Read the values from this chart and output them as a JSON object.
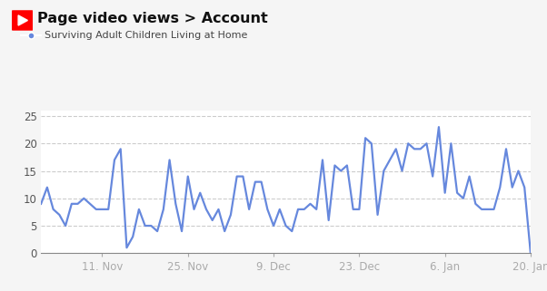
{
  "title": "Page video views > Account",
  "legend_label": "Surviving Adult Children Living at Home",
  "background_color": "#f5f5f5",
  "plot_bg_color": "#ffffff",
  "line_color": "#6688dd",
  "line_width": 1.6,
  "yticks": [
    0,
    5,
    10,
    15,
    20,
    25
  ],
  "ylim": [
    0,
    26
  ],
  "xtick_labels": [
    "11. Nov",
    "25. Nov",
    "9. Dec",
    "23. Dec",
    "6. Jan",
    "20. Jan"
  ],
  "grid_color": "#cccccc",
  "grid_style": "--",
  "title_color": "#111111",
  "title_fontsize": 11.5,
  "legend_color": "#444444",
  "legend_fontsize": 8,
  "tick_fontsize": 8.5,
  "values": [
    9,
    12,
    8,
    7,
    5,
    9,
    9,
    10,
    9,
    8,
    8,
    8,
    17,
    19,
    1,
    3,
    8,
    5,
    5,
    4,
    8,
    17,
    9,
    4,
    14,
    8,
    11,
    8,
    6,
    8,
    4,
    7,
    14,
    14,
    8,
    13,
    13,
    8,
    5,
    8,
    5,
    4,
    8,
    8,
    9,
    8,
    17,
    6,
    16,
    15,
    16,
    8,
    8,
    21,
    20,
    7,
    15,
    17,
    19,
    15,
    20,
    19,
    19,
    20,
    14,
    23,
    11,
    20,
    11,
    10,
    14,
    9,
    8,
    8,
    8,
    12,
    19,
    12,
    15,
    12,
    0
  ],
  "xtick_positions": [
    10,
    24,
    38,
    52,
    66,
    80
  ]
}
